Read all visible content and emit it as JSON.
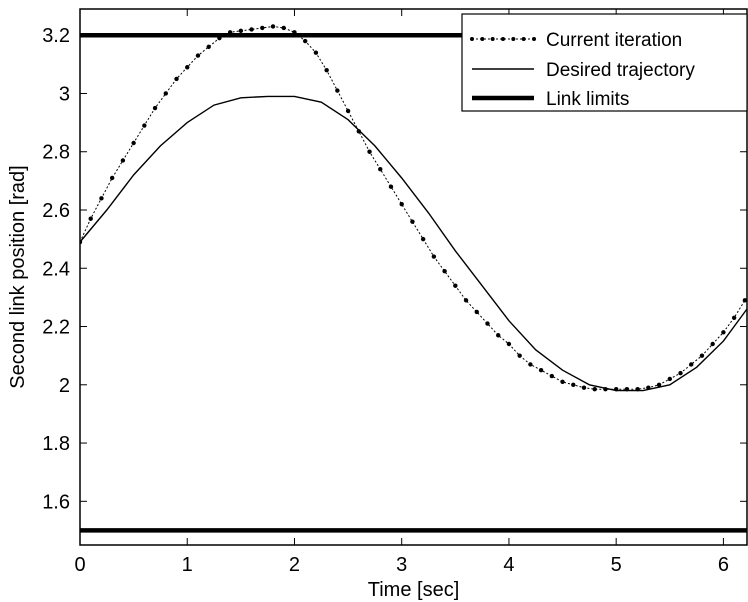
{
  "chart_data": {
    "type": "line",
    "xlabel": "Time [sec]",
    "ylabel": "Second link position [rad]",
    "xlim": [
      0,
      6.22
    ],
    "ylim": [
      1.45,
      3.29
    ],
    "xticks": [
      0,
      1,
      2,
      3,
      4,
      5,
      6
    ],
    "yticks": [
      1.6,
      1.8,
      2,
      2.2,
      2.4,
      2.6,
      2.8,
      3,
      3.2
    ],
    "ytick_labels": [
      "1.6",
      "1.8",
      "2",
      "2.2",
      "2.4",
      "2.6",
      "2.8",
      "3",
      "3.2"
    ],
    "grid": false,
    "legend_position": "top-right",
    "series": [
      {
        "name": "Current iteration",
        "style": "dotted line with point markers",
        "color": "#000000",
        "x": [
          0,
          0.1,
          0.2,
          0.3,
          0.4,
          0.5,
          0.6,
          0.7,
          0.8,
          0.9,
          1.0,
          1.1,
          1.2,
          1.3,
          1.4,
          1.5,
          1.6,
          1.7,
          1.8,
          1.9,
          2.0,
          2.1,
          2.2,
          2.3,
          2.4,
          2.5,
          2.6,
          2.7,
          2.8,
          2.9,
          3.0,
          3.1,
          3.2,
          3.3,
          3.4,
          3.5,
          3.6,
          3.7,
          3.8,
          3.9,
          4.0,
          4.1,
          4.2,
          4.3,
          4.4,
          4.5,
          4.6,
          4.7,
          4.8,
          4.9,
          5.0,
          5.1,
          5.2,
          5.3,
          5.4,
          5.5,
          5.6,
          5.7,
          5.8,
          5.9,
          6.0,
          6.1,
          6.2
        ],
        "y": [
          2.49,
          2.57,
          2.64,
          2.71,
          2.77,
          2.83,
          2.89,
          2.95,
          3.0,
          3.05,
          3.09,
          3.13,
          3.16,
          3.19,
          3.21,
          3.215,
          3.22,
          3.225,
          3.23,
          3.225,
          3.21,
          3.18,
          3.14,
          3.08,
          3.01,
          2.94,
          2.87,
          2.8,
          2.74,
          2.68,
          2.62,
          2.56,
          2.5,
          2.44,
          2.39,
          2.34,
          2.29,
          2.25,
          2.21,
          2.17,
          2.14,
          2.1,
          2.07,
          2.05,
          2.03,
          2.01,
          2.0,
          1.99,
          1.985,
          1.985,
          1.985,
          1.985,
          1.985,
          1.99,
          2.0,
          2.02,
          2.04,
          2.07,
          2.1,
          2.14,
          2.18,
          2.23,
          2.29
        ]
      },
      {
        "name": "Desired trajectory",
        "style": "solid thin",
        "color": "#000000",
        "x": [
          0,
          0.25,
          0.5,
          0.75,
          1.0,
          1.25,
          1.5,
          1.75,
          2.0,
          2.25,
          2.5,
          2.75,
          3.0,
          3.25,
          3.5,
          3.75,
          4.0,
          4.25,
          4.5,
          4.75,
          5.0,
          5.25,
          5.5,
          5.75,
          6.0,
          6.22
        ],
        "y": [
          2.49,
          2.6,
          2.72,
          2.82,
          2.9,
          2.96,
          2.985,
          2.99,
          2.99,
          2.97,
          2.91,
          2.82,
          2.71,
          2.59,
          2.46,
          2.34,
          2.22,
          2.12,
          2.05,
          2.0,
          1.98,
          1.98,
          2.0,
          2.06,
          2.15,
          2.26
        ]
      },
      {
        "name": "Link limits",
        "style": "solid thick",
        "color": "#000000",
        "lines_at_y": [
          3.2,
          1.5
        ]
      }
    ]
  }
}
